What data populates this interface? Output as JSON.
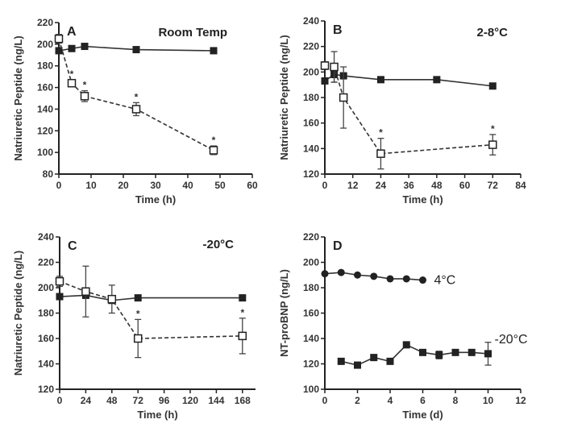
{
  "chart_data": [
    {
      "type": "line",
      "panel": "A",
      "title": "Room Temp",
      "xlabel": "Time (h)",
      "ylabel": "Natriuretic Peptide (ng/L)",
      "xlim": [
        0,
        60
      ],
      "ylim": [
        80,
        220
      ],
      "xticks": [
        0,
        10,
        20,
        30,
        40,
        50,
        60
      ],
      "yticks": [
        80,
        100,
        120,
        140,
        160,
        180,
        200,
        220
      ],
      "series": [
        {
          "name": "filled",
          "marker": "filled-square",
          "dash": false,
          "x": [
            0,
            4,
            8,
            24,
            48
          ],
          "y": [
            194,
            196,
            198,
            195,
            194
          ],
          "err": [
            1,
            1,
            1,
            1,
            1
          ],
          "stars": []
        },
        {
          "name": "open",
          "marker": "open-square",
          "dash": true,
          "x": [
            0,
            4,
            8,
            24,
            48
          ],
          "y": [
            205,
            164,
            152,
            140,
            102
          ],
          "err": [
            4,
            3,
            5,
            6,
            4
          ],
          "stars": [
            4,
            8,
            24,
            48
          ]
        }
      ]
    },
    {
      "type": "line",
      "panel": "B",
      "title": "2-8°C",
      "xlabel": "Time (h)",
      "ylabel": "Natriuretic Peptide (ng/L)",
      "xlim": [
        0,
        84
      ],
      "ylim": [
        120,
        240
      ],
      "xticks": [
        0,
        12,
        24,
        36,
        48,
        60,
        72,
        84
      ],
      "yticks": [
        120,
        140,
        160,
        180,
        200,
        220,
        240
      ],
      "series": [
        {
          "name": "filled",
          "marker": "filled-square",
          "dash": false,
          "x": [
            0,
            4,
            8,
            24,
            48,
            72
          ],
          "y": [
            193,
            198,
            197,
            194,
            194,
            189
          ],
          "err": [
            1,
            6,
            1,
            1,
            1,
            1
          ],
          "stars": []
        },
        {
          "name": "open",
          "marker": "open-square",
          "dash": true,
          "x": [
            0,
            4,
            8,
            24,
            72
          ],
          "y": [
            205,
            204,
            180,
            136,
            143
          ],
          "err": [
            3,
            12,
            24,
            12,
            8
          ],
          "stars": [
            24,
            72
          ]
        }
      ]
    },
    {
      "type": "line",
      "panel": "C",
      "title": "-20°C",
      "xlabel": "Time (h)",
      "ylabel": "Natriuretic Peptide (ng/L)",
      "xlim": [
        0,
        180
      ],
      "ylim": [
        120,
        240
      ],
      "xticks": [
        0,
        24,
        48,
        72,
        96,
        120,
        144,
        168
      ],
      "yticks": [
        120,
        140,
        160,
        180,
        200,
        220,
        240
      ],
      "series": [
        {
          "name": "filled",
          "marker": "filled-square",
          "dash": false,
          "x": [
            0,
            24,
            48,
            72,
            168
          ],
          "y": [
            193,
            194,
            190,
            192,
            192
          ],
          "err": [
            1,
            1,
            1,
            1,
            1
          ],
          "stars": []
        },
        {
          "name": "open",
          "marker": "open-square",
          "dash": true,
          "x": [
            0,
            24,
            48,
            72,
            168
          ],
          "y": [
            205,
            197,
            191,
            160,
            162
          ],
          "err": [
            4,
            20,
            11,
            15,
            14
          ],
          "stars": [
            72,
            168
          ]
        }
      ]
    },
    {
      "type": "line",
      "panel": "D",
      "title": "",
      "xlabel": "Time (d)",
      "ylabel": "NT-proBNP (ng/L)",
      "xlim": [
        0,
        12
      ],
      "ylim": [
        100,
        220
      ],
      "xticks": [
        0,
        2,
        4,
        6,
        8,
        10,
        12
      ],
      "yticks": [
        100,
        120,
        140,
        160,
        180,
        200,
        220
      ],
      "series": [
        {
          "name": "4°C",
          "marker": "filled-circle",
          "dash": false,
          "x": [
            0,
            1,
            2,
            3,
            4,
            5,
            6
          ],
          "y": [
            191,
            192,
            190,
            189,
            187,
            187,
            186
          ],
          "err": [
            0,
            0,
            0,
            0,
            0,
            0,
            0
          ],
          "stars": [],
          "label": "4°C"
        },
        {
          "name": "-20°C",
          "marker": "filled-square",
          "dash": false,
          "x": [
            1,
            2,
            3,
            4,
            5,
            6,
            7,
            8,
            9,
            10
          ],
          "y": [
            122,
            119,
            125,
            122,
            135,
            129,
            127,
            129,
            129,
            128
          ],
          "err": [
            0,
            0,
            0,
            0,
            0,
            0,
            3,
            0,
            0,
            9
          ],
          "stars": [],
          "label": "-20°C"
        }
      ]
    }
  ],
  "star_symbol": "*"
}
